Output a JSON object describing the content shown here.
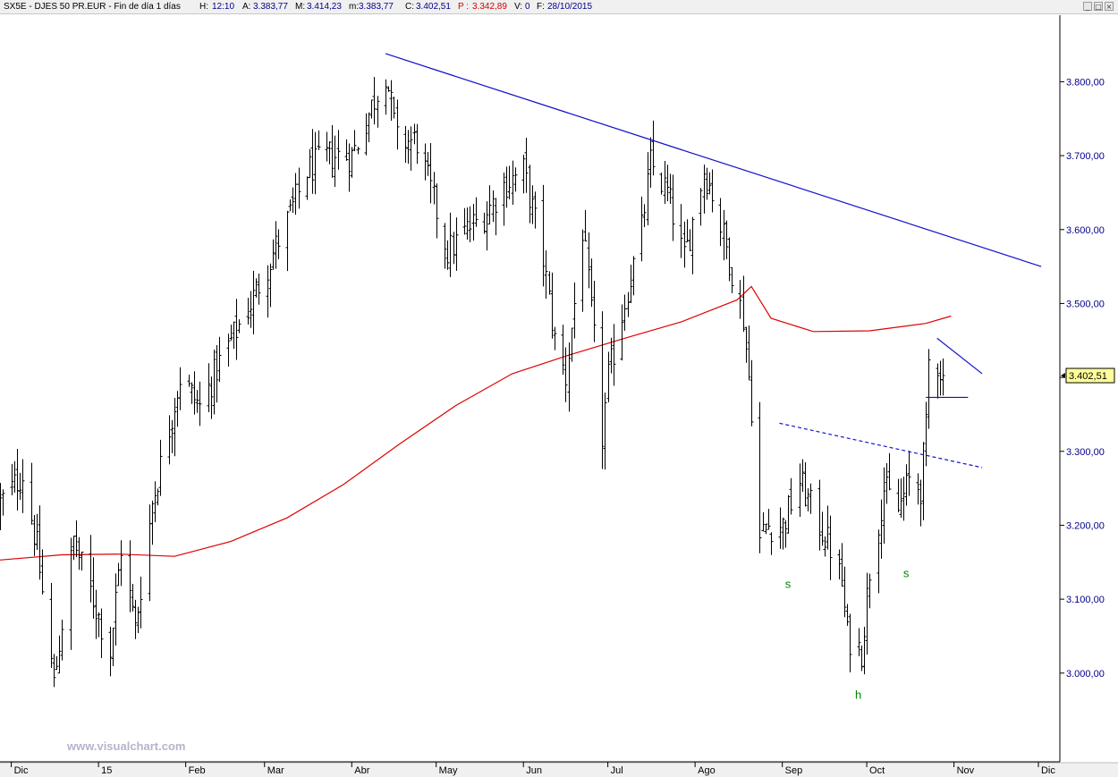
{
  "header": {
    "symbol": "SX5E - DJES 50 PR.EUR - Fin de día 1 días",
    "h_label": "H:",
    "h_val": "12:10",
    "a_label": "A:",
    "a_val": "3.383,77",
    "m_label": "M:",
    "m_val": "3.414,23",
    "min_label": "m:",
    "min_val": "3.383,77",
    "c_label": "C:",
    "c_val": "3.402,51",
    "p_label": "P :",
    "p_val": "3.342,89",
    "v_label": "V:",
    "v_val": "0",
    "f_label": "F:",
    "f_val": "28/10/2015",
    "minimize_icon": "minimize-icon",
    "maximize_icon": "maximize-icon",
    "close_icon": "close-icon"
  },
  "watermark": "www.visualchart.com",
  "chart_data": {
    "type": "ohlc-bar",
    "price_axis": {
      "ticks": [
        3000,
        3100,
        3200,
        3300,
        3400,
        3500,
        3600,
        3700,
        3800
      ],
      "tick_labels": [
        "3.000,00",
        "3.100,00",
        "3.200,00",
        "3.300,00",
        "3.400,00",
        "3.500,00",
        "3.600,00",
        "3.700,00",
        "3.800,00"
      ],
      "range": [
        2880,
        3890
      ]
    },
    "time_axis": {
      "labels": [
        "Dic",
        "15",
        "Feb",
        "Mar",
        "Abr",
        "May",
        "Jun",
        "Jul",
        "Ago",
        "Sep",
        "Oct",
        "Nov",
        "Dic"
      ],
      "range": [
        "2014-11-27",
        "2015-12-08"
      ]
    },
    "last_price_label": "3.402,51",
    "colors": {
      "bars": "#000000",
      "moving_average": "#e00000",
      "trendlines": "#1010cc",
      "pattern_labels": "#008000",
      "price_axis_text": "#00008b"
    },
    "pattern_labels": [
      {
        "text": "s",
        "date": "2015-09-03",
        "price": 3115
      },
      {
        "text": "h",
        "date": "2015-09-28",
        "price": 2965
      },
      {
        "text": "s",
        "date": "2015-10-15",
        "price": 3130
      }
    ],
    "trendlines": [
      {
        "name": "resistance",
        "style": "solid",
        "points": [
          [
            "2015-04-13",
            3838
          ],
          [
            "2015-12-02",
            3550
          ]
        ]
      },
      {
        "name": "neckline",
        "style": "dashed",
        "points": [
          [
            "2015-08-31",
            3338
          ],
          [
            "2015-11-11",
            3278
          ]
        ]
      },
      {
        "name": "pennant-upper",
        "style": "solid",
        "points": [
          [
            "2015-10-26",
            3453
          ],
          [
            "2015-11-11",
            3405
          ]
        ]
      },
      {
        "name": "pennant-base",
        "style": "solid",
        "points": [
          [
            "2015-10-22",
            3373
          ],
          [
            "2015-11-06",
            3373
          ]
        ]
      }
    ],
    "moving_average": [
      [
        "2014-11-27",
        3153
      ],
      [
        "2014-12-19",
        3160
      ],
      [
        "2015-01-08",
        3161
      ],
      [
        "2015-01-28",
        3158
      ],
      [
        "2015-02-17",
        3178
      ],
      [
        "2015-03-09",
        3210
      ],
      [
        "2015-03-29",
        3255
      ],
      [
        "2015-04-18",
        3310
      ],
      [
        "2015-05-08",
        3362
      ],
      [
        "2015-05-28",
        3405
      ],
      [
        "2015-06-17",
        3430
      ],
      [
        "2015-07-07",
        3453
      ],
      [
        "2015-07-27",
        3475
      ],
      [
        "2015-08-16",
        3505
      ],
      [
        "2015-08-21",
        3523
      ],
      [
        "2015-08-28",
        3480
      ],
      [
        "2015-09-12",
        3462
      ],
      [
        "2015-10-02",
        3463
      ],
      [
        "2015-10-22",
        3473
      ],
      [
        "2015-10-31",
        3483
      ]
    ],
    "close_anchors": [
      [
        "2014-11-27",
        3230
      ],
      [
        "2014-12-05",
        3270
      ],
      [
        "2014-12-10",
        3170
      ],
      [
        "2014-12-16",
        2985
      ],
      [
        "2014-12-23",
        3180
      ],
      [
        "2015-01-05",
        3030
      ],
      [
        "2015-01-09",
        3170
      ],
      [
        "2015-01-14",
        3060
      ],
      [
        "2015-01-20",
        3230
      ],
      [
        "2015-01-30",
        3400
      ],
      [
        "2015-02-06",
        3360
      ],
      [
        "2015-02-13",
        3420
      ],
      [
        "2015-02-24",
        3500
      ],
      [
        "2015-03-10",
        3620
      ],
      [
        "2015-03-16",
        3680
      ],
      [
        "2015-03-24",
        3700
      ],
      [
        "2015-04-01",
        3700
      ],
      [
        "2015-04-13",
        3815
      ],
      [
        "2015-04-17",
        3720
      ],
      [
        "2015-04-24",
        3720
      ],
      [
        "2015-05-05",
        3570
      ],
      [
        "2015-05-12",
        3600
      ],
      [
        "2015-05-18",
        3620
      ],
      [
        "2015-05-25",
        3660
      ],
      [
        "2015-06-01",
        3680
      ],
      [
        "2015-06-08",
        3560
      ],
      [
        "2015-06-12",
        3450
      ],
      [
        "2015-06-16",
        3400
      ],
      [
        "2015-06-22",
        3600
      ],
      [
        "2015-06-26",
        3450
      ],
      [
        "2015-06-29",
        3320
      ],
      [
        "2015-07-01",
        3400
      ],
      [
        "2015-07-08",
        3520
      ],
      [
        "2015-07-13",
        3600
      ],
      [
        "2015-07-16",
        3690
      ],
      [
        "2015-07-22",
        3650
      ],
      [
        "2015-07-28",
        3560
      ],
      [
        "2015-08-04",
        3680
      ],
      [
        "2015-08-07",
        3650
      ],
      [
        "2015-08-13",
        3560
      ],
      [
        "2015-08-18",
        3480
      ],
      [
        "2015-08-21",
        3360
      ],
      [
        "2015-08-24",
        3180
      ],
      [
        "2015-08-26",
        3200
      ],
      [
        "2015-09-01",
        3200
      ],
      [
        "2015-09-07",
        3260
      ],
      [
        "2015-09-14",
        3200
      ],
      [
        "2015-09-18",
        3170
      ],
      [
        "2015-09-22",
        3120
      ],
      [
        "2015-09-24",
        3050
      ],
      [
        "2015-09-29",
        3030
      ],
      [
        "2015-10-02",
        3140
      ],
      [
        "2015-10-07",
        3250
      ],
      [
        "2015-10-12",
        3220
      ],
      [
        "2015-10-16",
        3260
      ],
      [
        "2015-10-20",
        3250
      ],
      [
        "2015-10-22",
        3330
      ],
      [
        "2015-10-23",
        3420
      ],
      [
        "2015-10-26",
        3420
      ],
      [
        "2015-10-28",
        3402
      ]
    ]
  }
}
